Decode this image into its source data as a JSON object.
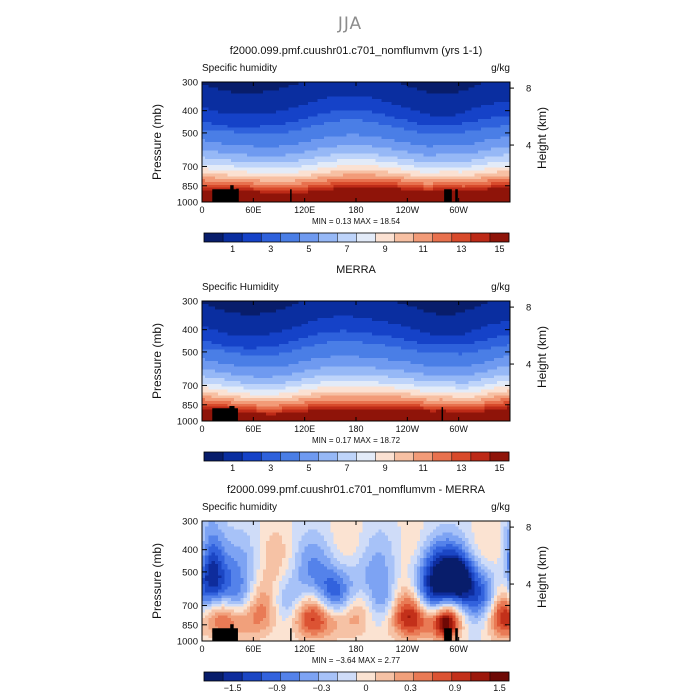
{
  "figure": {
    "title": "JJA"
  },
  "colors": {
    "field": [
      "#081d6b",
      "#0a2ea0",
      "#1542c8",
      "#2e61dc",
      "#4a7ee6",
      "#6f9af0",
      "#96b8f6",
      "#bed4fa",
      "#e3ebf8",
      "#fbe1d2",
      "#f7c0a3",
      "#f29b78",
      "#e8714e",
      "#d84a2b",
      "#bd2a17",
      "#8f1409"
    ],
    "diff": [
      "#081d6b",
      "#0e2c9c",
      "#1b46c4",
      "#3262dd",
      "#5482ea",
      "#7da3f3",
      "#a7c2f8",
      "#cfdcf8",
      "#fbe3d2",
      "#f6c2a5",
      "#f1a07b",
      "#e97a55",
      "#dc5333",
      "#c3301a",
      "#9c180b",
      "#6e0905"
    ]
  },
  "chart_data": [
    {
      "type": "heatmap",
      "name": "model",
      "title": "f2000.099.pmf.cuushr01.c701_nomflumvm (yrs 1-1)",
      "left_label": "Specific humidity",
      "right_label": "g/kg",
      "ylabel": "Pressure (mb)",
      "ylabel_right": "Height (km)",
      "y_ticks": [
        300,
        400,
        500,
        700,
        850,
        1000
      ],
      "y_right_ticks": [
        4,
        8
      ],
      "x_ticks": [
        "0",
        "60E",
        "120E",
        "180",
        "120W",
        "60W"
      ],
      "x_tick_lon": [
        0,
        60,
        120,
        180,
        240,
        300
      ],
      "xlim": [
        0,
        360
      ],
      "ylim": [
        1000,
        300
      ],
      "stats": {
        "min_label": "MIN =",
        "min": "0.13",
        "max_label": "MAX =",
        "max": "18.54"
      },
      "colorbar_ticks": [
        "1",
        "3",
        "5",
        "7",
        "9",
        "11",
        "13",
        "15"
      ],
      "contour_levels": [
        0.5,
        1,
        1.5,
        2,
        3,
        4,
        5,
        6,
        7,
        8,
        9,
        10,
        11,
        12,
        13,
        14,
        15
      ],
      "terrain": [
        [
          12,
          42,
          880
        ],
        [
          40,
          43,
          875
        ],
        [
          33,
          37,
          845
        ],
        [
          103,
          104,
          880
        ],
        [
          283,
          292,
          880
        ],
        [
          296,
          299,
          880
        ]
      ]
    },
    {
      "type": "heatmap",
      "name": "merra",
      "title": "MERRA",
      "left_label": "Specific Humidity",
      "right_label": "g/kg",
      "ylabel": "Pressure (mb)",
      "ylabel_right": "Height (km)",
      "y_ticks": [
        300,
        400,
        500,
        700,
        850,
        1000
      ],
      "y_right_ticks": [
        4,
        8
      ],
      "x_ticks": [
        "0",
        "60E",
        "120E",
        "180",
        "120W",
        "60W"
      ],
      "x_tick_lon": [
        0,
        60,
        120,
        180,
        240,
        300
      ],
      "xlim": [
        0,
        360
      ],
      "ylim": [
        1000,
        300
      ],
      "stats": {
        "min_label": "MIN =",
        "min": "0.17",
        "max_label": "MAX =",
        "max": "18.72"
      },
      "colorbar_ticks": [
        "1",
        "3",
        "5",
        "7",
        "9",
        "11",
        "13",
        "15"
      ],
      "contour_levels": [
        0.5,
        1,
        1.5,
        2,
        3,
        4,
        5,
        6,
        7,
        8,
        9,
        10,
        11,
        12,
        13,
        14,
        15
      ],
      "terrain": [
        [
          12,
          42,
          880
        ],
        [
          32,
          38,
          860
        ],
        [
          280,
          281,
          870
        ]
      ]
    },
    {
      "type": "heatmap",
      "name": "difference",
      "title": "f2000.099.pmf.cuushr01.c701_nomflumvm - MERRA",
      "left_label": "Specific humidity",
      "right_label": "g/kg",
      "ylabel": "Pressure (mb)",
      "ylabel_right": "Height (km)",
      "y_ticks": [
        300,
        400,
        500,
        700,
        850,
        1000
      ],
      "y_right_ticks": [
        4,
        8
      ],
      "x_ticks": [
        "0",
        "60E",
        "120E",
        "180",
        "120W",
        "60W"
      ],
      "x_tick_lon": [
        0,
        60,
        120,
        180,
        240,
        300
      ],
      "xlim": [
        0,
        360
      ],
      "ylim": [
        1000,
        300
      ],
      "stats": {
        "min_label": "MIN =",
        "min": "−3.64",
        "max_label": "MAX =",
        "max": "2.77"
      },
      "colorbar_ticks": [
        "−1.5",
        "−0.9",
        "−0.3",
        "0",
        "0.3",
        "0.9",
        "1.5"
      ],
      "contour_levels": [
        -2.1,
        -1.8,
        -1.5,
        -1.2,
        -0.9,
        -0.6,
        -0.3,
        0,
        0.3,
        0.6,
        0.9,
        1.2,
        1.5,
        1.8,
        2.1
      ],
      "terrain": [
        [
          12,
          42,
          880
        ],
        [
          33,
          37,
          845
        ],
        [
          103,
          104,
          880
        ],
        [
          283,
          292,
          880
        ],
        [
          296,
          299,
          880
        ]
      ]
    }
  ]
}
